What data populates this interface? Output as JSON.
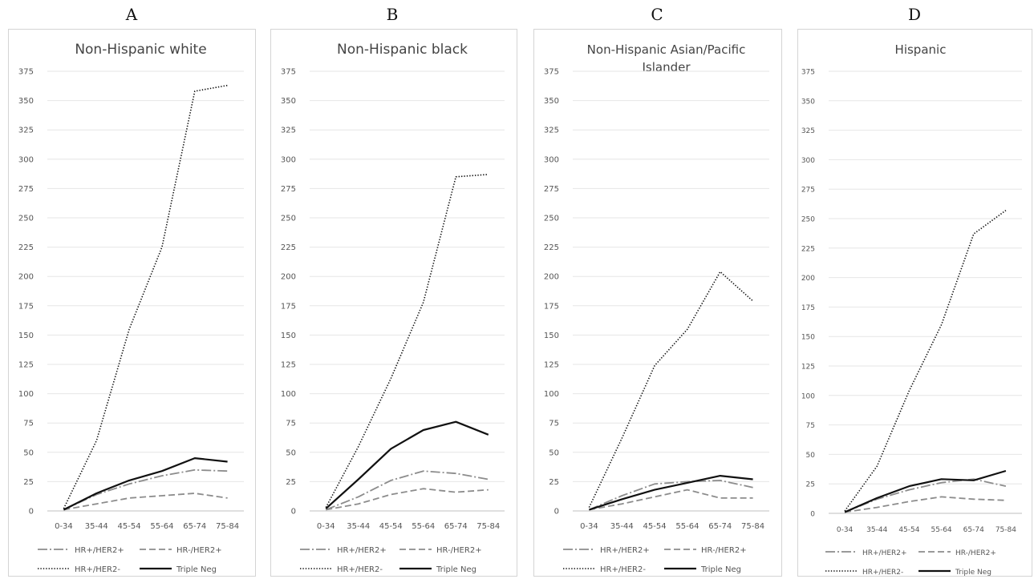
{
  "panels": [
    {
      "letter": "A",
      "title_lines": [
        "Non-Hispanic white"
      ]
    },
    {
      "letter": "B",
      "title_lines": [
        "Non-Hispanic black"
      ]
    },
    {
      "letter": "C",
      "title_lines": [
        "Non-Hispanic Asian/Pacific",
        "Islander"
      ]
    },
    {
      "letter": "D",
      "title_lines": [
        "Hispanic"
      ]
    }
  ],
  "chart_data": [
    {
      "type": "line",
      "title": "Non-Hispanic white",
      "categories": [
        "0-34",
        "35-44",
        "45-54",
        "55-64",
        "65-74",
        "75-84"
      ],
      "ylim": [
        0,
        375
      ],
      "yticks": [
        0,
        25,
        50,
        75,
        100,
        125,
        150,
        175,
        200,
        225,
        250,
        275,
        300,
        325,
        350,
        375
      ],
      "grid": true,
      "legend_position": "bottom",
      "series": [
        {
          "name": "HR+/HER2+",
          "style": "dashdot",
          "color": "#8c8c8c",
          "values": [
            1,
            14,
            23,
            30,
            35,
            34
          ]
        },
        {
          "name": "HR-/HER2+",
          "style": "dashed",
          "color": "#8c8c8c",
          "values": [
            1,
            6,
            11,
            13,
            15,
            11
          ]
        },
        {
          "name": "HR+/HER2-",
          "style": "dotted",
          "color": "#111111",
          "values": [
            2,
            60,
            155,
            225,
            358,
            363
          ]
        },
        {
          "name": "Triple Neg",
          "style": "solid",
          "color": "#111111",
          "values": [
            1,
            15,
            26,
            34,
            45,
            42
          ]
        }
      ]
    },
    {
      "type": "line",
      "title": "Non-Hispanic black",
      "categories": [
        "0-34",
        "35-44",
        "45-54",
        "55-64",
        "65-74",
        "75-84"
      ],
      "ylim": [
        0,
        375
      ],
      "yticks": [
        0,
        25,
        50,
        75,
        100,
        125,
        150,
        175,
        200,
        225,
        250,
        275,
        300,
        325,
        350,
        375
      ],
      "grid": true,
      "legend_position": "bottom",
      "series": [
        {
          "name": "HR+/HER2+",
          "style": "dashdot",
          "color": "#8c8c8c",
          "values": [
            1,
            12,
            26,
            34,
            32,
            27
          ]
        },
        {
          "name": "HR-/HER2+",
          "style": "dashed",
          "color": "#8c8c8c",
          "values": [
            1,
            6,
            14,
            19,
            16,
            18
          ]
        },
        {
          "name": "HR+/HER2-",
          "style": "dotted",
          "color": "#111111",
          "values": [
            3,
            55,
            113,
            178,
            285,
            287
          ]
        },
        {
          "name": "Triple Neg",
          "style": "solid",
          "color": "#111111",
          "values": [
            2,
            27,
            53,
            69,
            76,
            65
          ]
        }
      ]
    },
    {
      "type": "line",
      "title": "Non-Hispanic Asian/Pacific Islander",
      "categories": [
        "0-34",
        "35-44",
        "45-54",
        "55-64",
        "65-74",
        "75-84"
      ],
      "ylim": [
        0,
        375
      ],
      "yticks": [
        0,
        25,
        50,
        75,
        100,
        125,
        150,
        175,
        200,
        225,
        250,
        275,
        300,
        325,
        350,
        375
      ],
      "grid": true,
      "legend_position": "bottom",
      "series": [
        {
          "name": "HR+/HER2+",
          "style": "dashdot",
          "color": "#8c8c8c",
          "values": [
            1,
            13,
            23,
            25,
            26,
            20
          ]
        },
        {
          "name": "HR-/HER2+",
          "style": "dashed",
          "color": "#8c8c8c",
          "values": [
            1,
            6,
            12,
            18,
            11,
            11
          ]
        },
        {
          "name": "HR+/HER2-",
          "style": "dotted",
          "color": "#111111",
          "values": [
            3,
            62,
            124,
            155,
            204,
            179
          ]
        },
        {
          "name": "Triple Neg",
          "style": "solid",
          "color": "#111111",
          "values": [
            1,
            10,
            18,
            24,
            30,
            27
          ]
        }
      ]
    },
    {
      "type": "line",
      "title": "Hispanic",
      "categories": [
        "0-34",
        "35-44",
        "45-54",
        "55-64",
        "65-74",
        "75-84"
      ],
      "ylim": [
        0,
        375
      ],
      "yticks": [
        0,
        25,
        50,
        75,
        100,
        125,
        150,
        175,
        200,
        225,
        250,
        275,
        300,
        325,
        350,
        375
      ],
      "grid": true,
      "legend_position": "bottom",
      "series": [
        {
          "name": "HR+/HER2+",
          "style": "dashdot",
          "color": "#8c8c8c",
          "values": [
            1,
            12,
            20,
            26,
            29,
            23
          ]
        },
        {
          "name": "HR-/HER2+",
          "style": "dashed",
          "color": "#8c8c8c",
          "values": [
            1,
            5,
            10,
            14,
            12,
            11
          ]
        },
        {
          "name": "HR+/HER2-",
          "style": "dotted",
          "color": "#111111",
          "values": [
            2,
            40,
            104,
            160,
            237,
            257
          ]
        },
        {
          "name": "Triple Neg",
          "style": "solid",
          "color": "#111111",
          "values": [
            1,
            13,
            23,
            29,
            28,
            36
          ]
        }
      ]
    }
  ]
}
